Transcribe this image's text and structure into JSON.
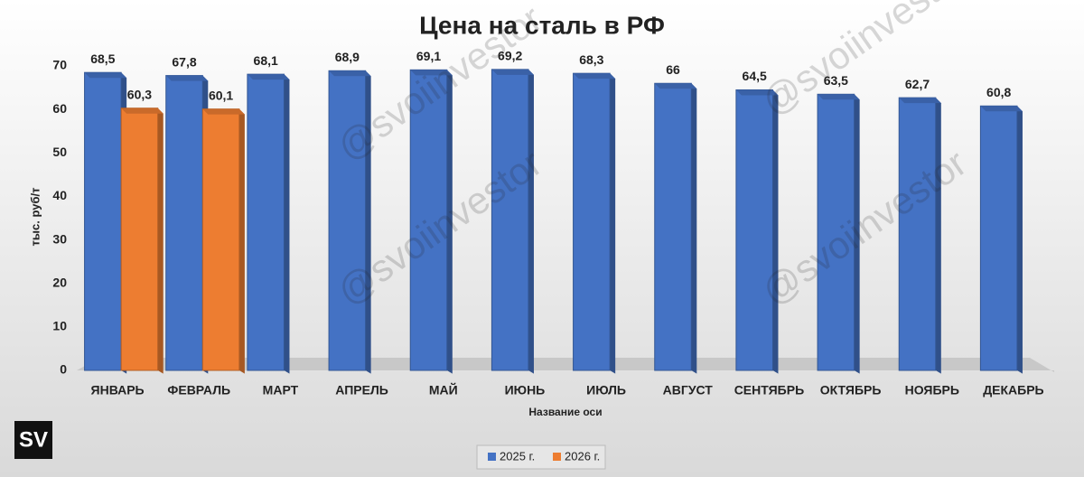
{
  "chart_data": {
    "type": "bar",
    "title": "Цена на сталь в РФ",
    "y_label": "тыс. руб/т",
    "x_label": "Название оси",
    "categories": [
      "ЯНВАРЬ",
      "ФЕВРАЛЬ",
      "МАРТ",
      "АПРЕЛЬ",
      "МАЙ",
      "ИЮНЬ",
      "ИЮЛЬ",
      "АВГУСТ",
      "СЕНТЯБРЬ",
      "ОКТЯБРЬ",
      "НОЯБРЬ",
      "ДЕКАБРЬ"
    ],
    "series": [
      {
        "name": "2025 г.",
        "color": "#4472c4",
        "values": [
          68.5,
          67.8,
          68.1,
          68.9,
          69.1,
          69.2,
          68.3,
          66,
          64.5,
          63.5,
          62.7,
          60.8
        ],
        "value_labels": [
          "68,5",
          "67,8",
          "68,1",
          "68,9",
          "69,1",
          "69,2",
          "68,3",
          "66",
          "64,5",
          "63,5",
          "62,7",
          "60,8"
        ]
      },
      {
        "name": "2026 г.",
        "color": "#ed7d31",
        "values": [
          60.3,
          60.1,
          null,
          null,
          null,
          null,
          null,
          null,
          null,
          null,
          null,
          null
        ],
        "value_labels": [
          "60,3",
          "60,1",
          null,
          null,
          null,
          null,
          null,
          null,
          null,
          null,
          null,
          null
        ]
      }
    ],
    "ylim": [
      0,
      70
    ],
    "yticks": [
      0,
      10,
      20,
      30,
      40,
      50,
      60,
      70
    ],
    "legend": "bottom",
    "watermark": "@svoiinvestor",
    "logo": "SV"
  }
}
